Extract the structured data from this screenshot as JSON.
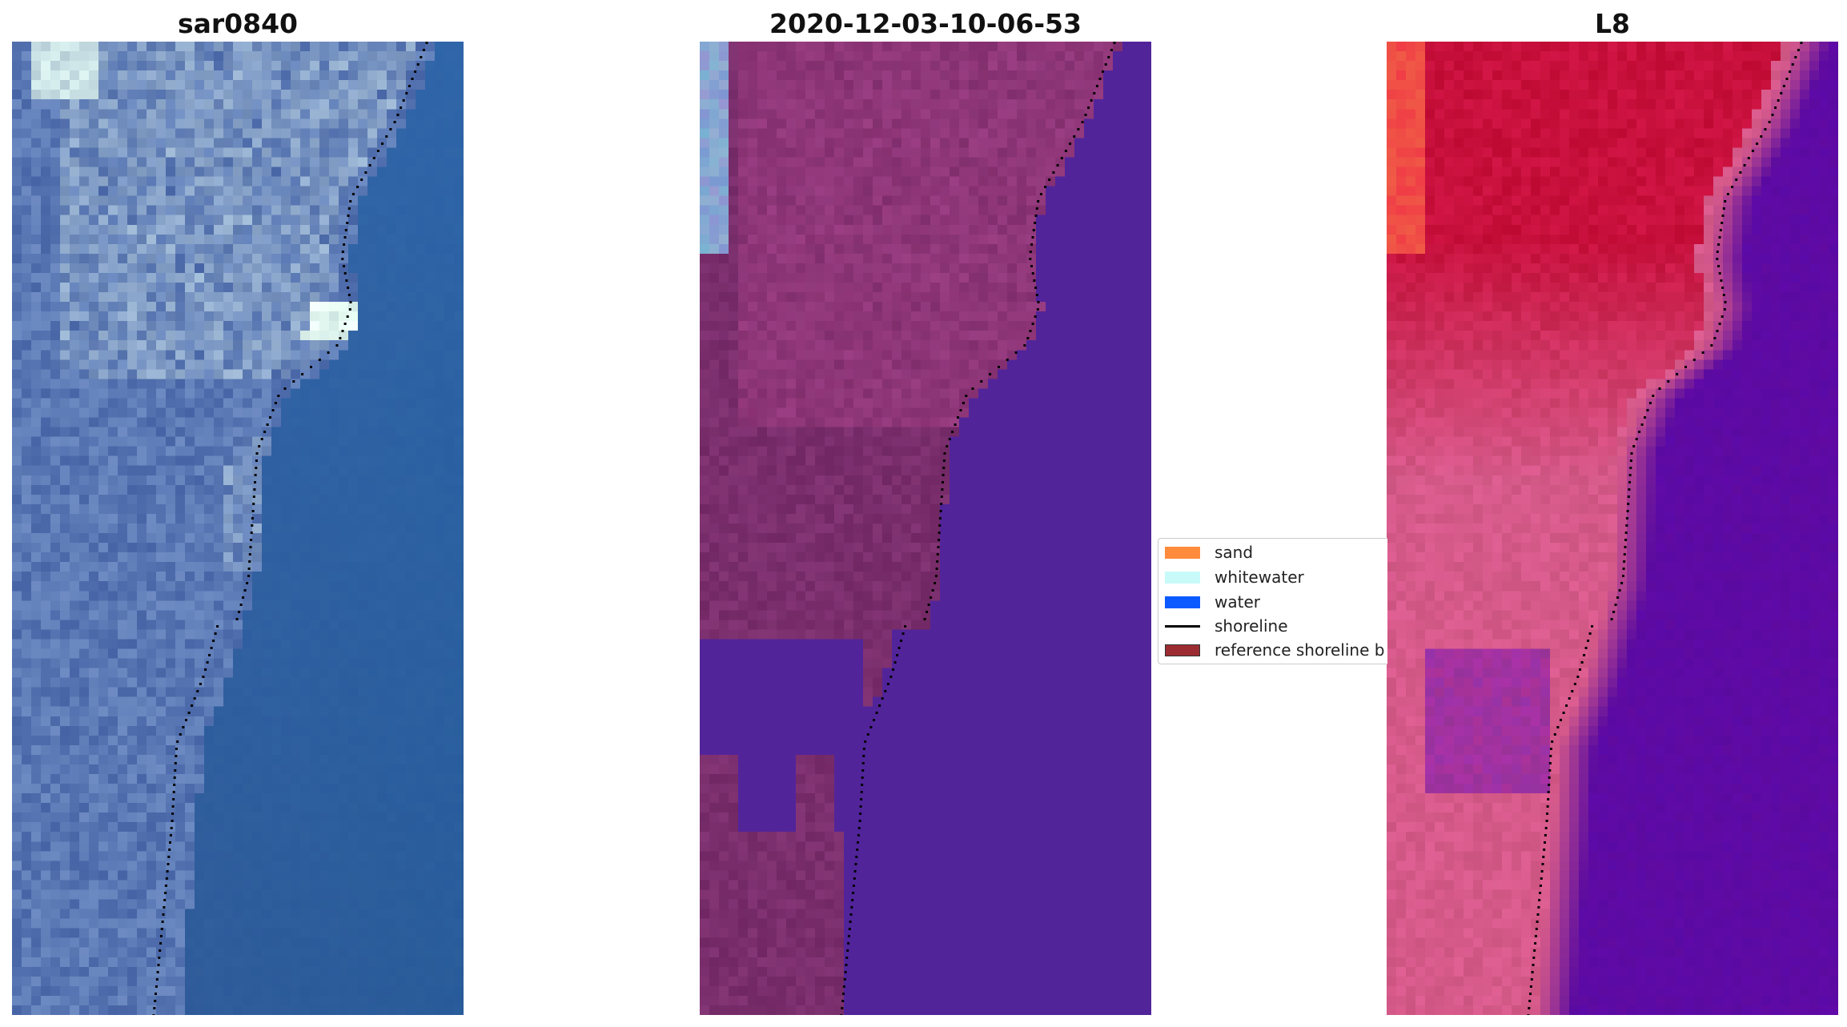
{
  "panels": [
    {
      "title": "sar0840"
    },
    {
      "title": "2020-12-03-10-06-53"
    },
    {
      "title": "L8"
    }
  ],
  "legend": {
    "items": [
      {
        "label": "sand",
        "type": "patch",
        "color": "#ff8c3c"
      },
      {
        "label": "whitewater",
        "type": "patch",
        "color": "#c8fafa"
      },
      {
        "label": "water",
        "type": "patch",
        "color": "#0a5aff"
      },
      {
        "label": "shoreline",
        "type": "line",
        "color": "#000000"
      },
      {
        "label": "reference shoreline b",
        "type": "patch",
        "color": "#9b2d32"
      }
    ]
  },
  "colors": {
    "rgb_water": "#2e64a8",
    "rgb_land": "#5a78b4",
    "class_land": "#7a2e6c",
    "class_water": "#52249a",
    "ndwi_land_high": "#c8103c",
    "ndwi_land_mid": "#d65a8a",
    "ndwi_water": "#5a0aa0"
  }
}
